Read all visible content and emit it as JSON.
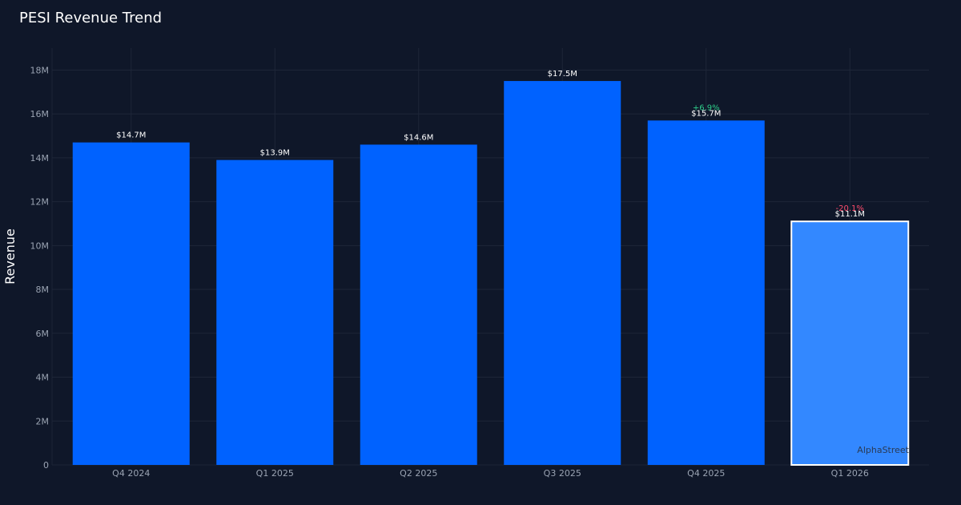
{
  "chart_data": {
    "type": "bar",
    "title": "PESI Revenue Trend",
    "xlabel": "",
    "ylabel": "Revenue",
    "ylim": [
      0,
      19
    ],
    "yticks": [
      0,
      2,
      4,
      6,
      8,
      10,
      12,
      14,
      16,
      18
    ],
    "ytick_labels": [
      "0",
      "2M",
      "4M",
      "6M",
      "8M",
      "10M",
      "12M",
      "14M",
      "16M",
      "18M"
    ],
    "categories": [
      "Q4 2024",
      "Q1 2025",
      "Q2 2025",
      "Q3 2025",
      "Q4 2025",
      "Q1 2026"
    ],
    "values": [
      14.7,
      13.9,
      14.6,
      17.5,
      15.7,
      11.1
    ],
    "value_labels": [
      "$14.7M",
      "$13.9M",
      "$14.6M",
      "$17.5M",
      "$15.7M",
      "$11.1M"
    ],
    "change_labels": [
      "",
      "",
      "",
      "",
      "+6.9%",
      "-20.1%"
    ],
    "highlight_index": 5,
    "grid": true,
    "watermark": "AlphaStreet"
  },
  "colors": {
    "background": "#0f1729",
    "bar": "#0062ff",
    "bar_highlight": "#3388ff",
    "highlight_border": "#ffffff",
    "grid": "#1e2638",
    "positive": "#2ecc8a",
    "negative": "#ff4d6d"
  }
}
